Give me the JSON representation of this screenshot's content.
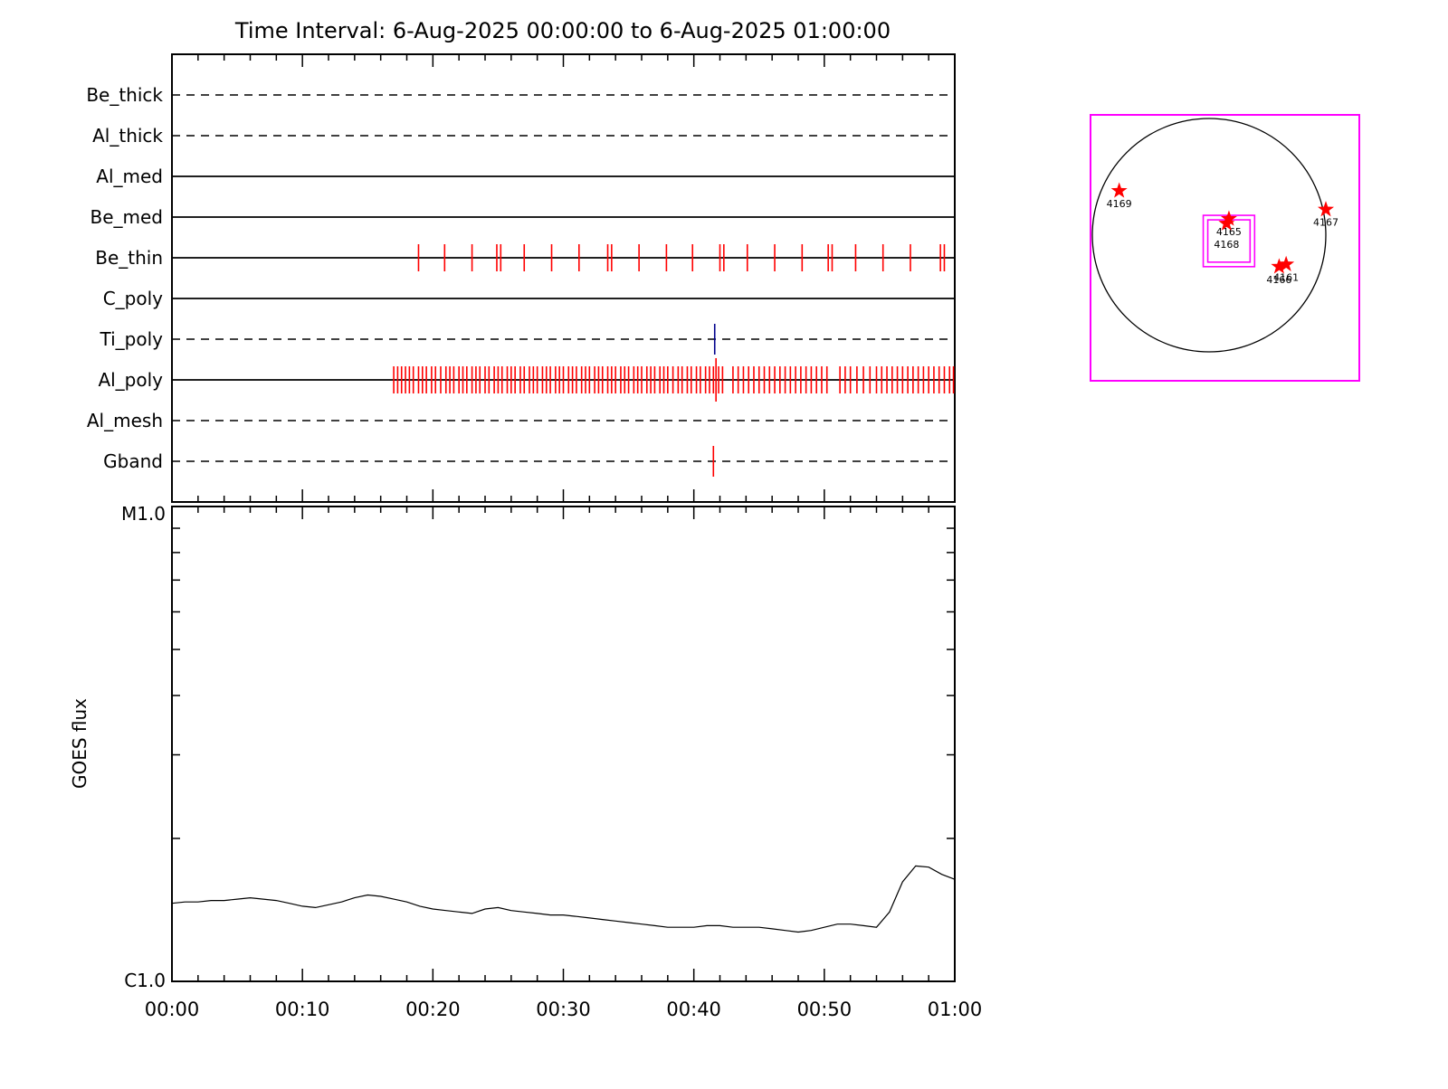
{
  "title": "Time Interval:  6-Aug-2025 00:00:00 to  6-Aug-2025 01:00:00",
  "chart_data": [
    {
      "type": "timeline",
      "name": "xrt-exposure-timeline",
      "x_axis": {
        "start_label": "00:00",
        "end_label": "01:00",
        "total_minutes": 60,
        "minor_tick_minutes": 2,
        "major_tick_minutes": 10
      },
      "rows": [
        {
          "label": "Be_thick",
          "line": "dashed"
        },
        {
          "label": "Al_thick",
          "line": "dashed"
        },
        {
          "label": "Al_med",
          "line": "solid"
        },
        {
          "label": "Be_med",
          "line": "solid"
        },
        {
          "label": "Be_thin",
          "line": "solid"
        },
        {
          "label": "C_poly",
          "line": "solid"
        },
        {
          "label": "Ti_poly",
          "line": "dashed"
        },
        {
          "label": "Al_poly",
          "line": "solid"
        },
        {
          "label": "Al_mesh",
          "line": "dashed"
        },
        {
          "label": "Gband",
          "line": "dashed"
        }
      ],
      "exposures": {
        "Be_thin": [
          18.9,
          20.9,
          23.0,
          24.9,
          25.2,
          27.0,
          29.1,
          31.2,
          33.4,
          33.7,
          35.8,
          37.9,
          39.9,
          42.0,
          42.3,
          44.1,
          46.2,
          48.3,
          50.3,
          50.6,
          52.4,
          54.5,
          56.6,
          58.9,
          59.2
        ],
        "Al_poly": [
          17.0,
          17.3,
          17.6,
          17.9,
          18.2,
          18.5,
          18.9,
          19.2,
          19.5,
          19.9,
          20.2,
          20.6,
          21.0,
          21.3,
          21.6,
          22.0,
          22.3,
          22.6,
          23.0,
          23.3,
          23.6,
          24.0,
          24.3,
          24.7,
          25.0,
          25.3,
          25.7,
          26.0,
          26.3,
          26.7,
          27.0,
          27.4,
          27.7,
          28.0,
          28.4,
          28.7,
          29.0,
          29.4,
          29.7,
          30.0,
          30.4,
          30.7,
          31.0,
          31.4,
          31.7,
          32.0,
          32.4,
          32.7,
          33.0,
          33.4,
          33.7,
          34.0,
          34.4,
          34.7,
          35.0,
          35.4,
          35.7,
          36.0,
          36.4,
          36.7,
          37.0,
          37.4,
          37.7,
          38.0,
          38.4,
          38.8,
          39.1,
          39.5,
          39.8,
          40.2,
          40.5,
          40.9,
          41.2,
          41.5,
          41.9,
          42.2,
          43.0,
          43.4,
          43.8,
          44.2,
          44.6,
          45.0,
          45.4,
          45.8,
          46.2,
          46.6,
          47.0,
          47.4,
          47.8,
          48.2,
          48.6,
          49.0,
          49.4,
          49.8,
          50.2,
          51.2,
          51.6,
          52.0,
          52.5,
          53.0,
          53.5,
          54.0,
          54.4,
          54.8,
          55.2,
          55.6,
          56.0,
          56.4,
          56.8,
          57.2,
          57.6,
          58.0,
          58.4,
          58.8,
          59.2,
          59.6,
          59.9
        ],
        "Al_poly_long": [
          41.7
        ],
        "Ti_poly": [
          41.6
        ],
        "Gband": [
          41.5
        ]
      },
      "colors": {
        "exposure_tick": "#ff0000",
        "ti_poly_tick": "#00008b",
        "line": "#000000"
      }
    },
    {
      "type": "line",
      "name": "goes-flux",
      "ylabel": "GOES flux",
      "yscale": "log",
      "y_top_label": "M1.0",
      "y_bottom_label": "C1.0",
      "ylim_w_m2": [
        1e-06,
        1e-05
      ],
      "x_tick_labels": [
        "00:00",
        "00:10",
        "00:20",
        "00:30",
        "00:40",
        "00:50",
        "01:00"
      ],
      "x_minutes": [
        0,
        1,
        2,
        3,
        4,
        5,
        6,
        7,
        8,
        9,
        10,
        11,
        12,
        13,
        14,
        15,
        16,
        17,
        18,
        19,
        20,
        21,
        22,
        23,
        24,
        25,
        26,
        27,
        28,
        29,
        30,
        31,
        32,
        33,
        34,
        35,
        36,
        37,
        38,
        39,
        40,
        41,
        42,
        43,
        44,
        45,
        46,
        47,
        48,
        49,
        50,
        51,
        52,
        53,
        54,
        55,
        56,
        57,
        58,
        59,
        60
      ],
      "flux_c_units": [
        1.46,
        1.47,
        1.47,
        1.48,
        1.48,
        1.49,
        1.5,
        1.49,
        1.48,
        1.46,
        1.44,
        1.43,
        1.45,
        1.47,
        1.5,
        1.52,
        1.51,
        1.49,
        1.47,
        1.44,
        1.42,
        1.41,
        1.4,
        1.39,
        1.42,
        1.43,
        1.41,
        1.4,
        1.39,
        1.38,
        1.38,
        1.37,
        1.36,
        1.35,
        1.34,
        1.33,
        1.32,
        1.31,
        1.3,
        1.3,
        1.3,
        1.31,
        1.31,
        1.3,
        1.3,
        1.3,
        1.29,
        1.28,
        1.27,
        1.28,
        1.3,
        1.32,
        1.32,
        1.31,
        1.3,
        1.4,
        1.62,
        1.75,
        1.74,
        1.68,
        1.64
      ]
    },
    {
      "type": "scatter",
      "name": "solar-disk-map",
      "frame_color": "#ff00ff",
      "limb_color": "#000000",
      "star_color": "#ff0000",
      "fov_box": {
        "cx": 0.17,
        "cy": -0.05,
        "half": 0.22
      },
      "regions": [
        {
          "noaa": "4169",
          "x": -0.77,
          "y": 0.38
        },
        {
          "noaa": "4165",
          "x": 0.17,
          "y": 0.14
        },
        {
          "noaa": "4168",
          "x": 0.15,
          "y": 0.1,
          "label_dy": 27
        },
        {
          "noaa": "4167",
          "x": 1.0,
          "y": 0.22
        },
        {
          "noaa": "4166",
          "x": 0.6,
          "y": -0.27
        },
        {
          "noaa": "4161",
          "x": 0.66,
          "y": -0.25
        }
      ]
    }
  ]
}
